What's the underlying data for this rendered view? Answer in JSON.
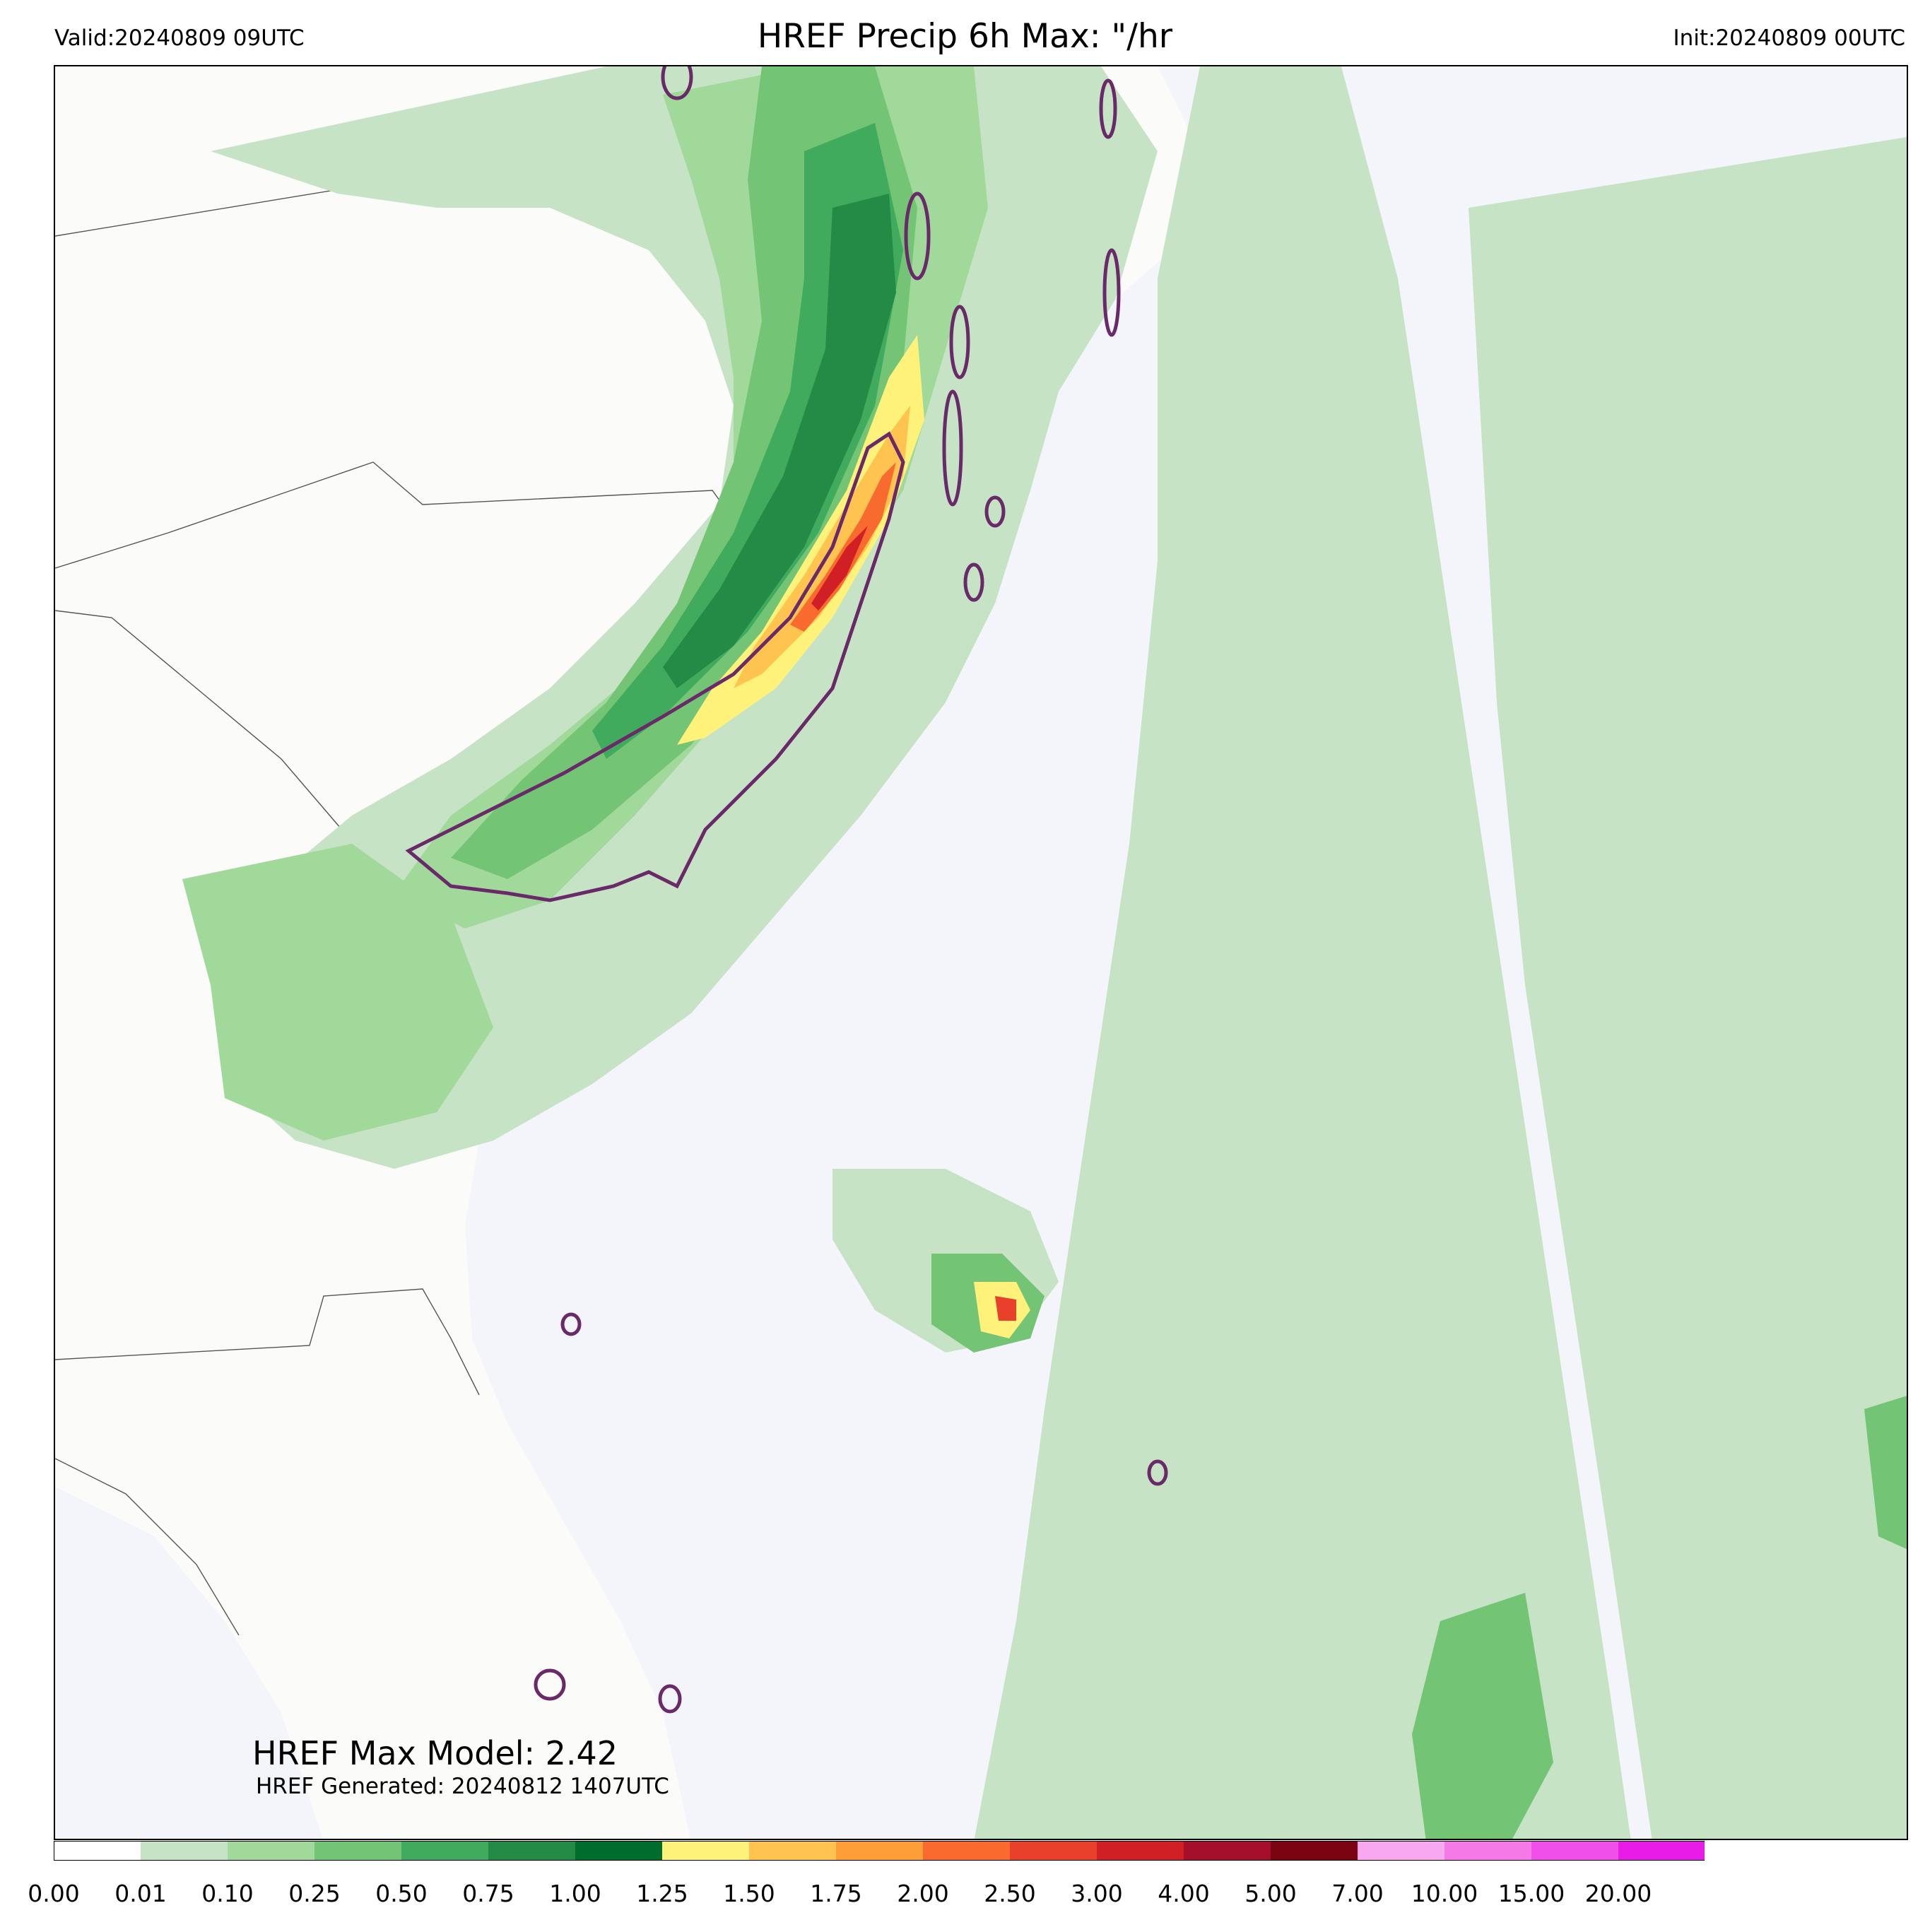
{
  "header": {
    "valid": "Valid:20240809 09UTC",
    "title": "HREF Precip 6h Max: \"/hr",
    "init": "Init:20240809 00UTC"
  },
  "annotations": {
    "max_model": "HREF Max Model: 2.42",
    "generated": "HREF Generated: 20240812 1407UTC"
  },
  "colorbar": {
    "ticks": [
      "0.00",
      "0.01",
      "0.10",
      "0.25",
      "0.50",
      "0.75",
      "1.00",
      "1.25",
      "1.50",
      "1.75",
      "2.00",
      "2.50",
      "3.00",
      "4.00",
      "5.00",
      "7.00",
      "10.00",
      "15.00",
      "20.00"
    ],
    "colors": [
      "#ffffff",
      "#c7e3c5",
      "#a1d99b",
      "#74c476",
      "#41ab5d",
      "#238b45",
      "#006d2c",
      "#fff27a",
      "#fec44f",
      "#fe9e38",
      "#f86a2e",
      "#e8402a",
      "#d11f26",
      "#a50f2c",
      "#7a0410",
      "#f7a8ee",
      "#f57ae8",
      "#f050e8",
      "#e81ce8",
      "#9a12c8"
    ],
    "extend_color": "#8e0ec0"
  },
  "map_colors": {
    "ocean": "#f3f5fb",
    "land": "#fbfbf9",
    "border": "#555555",
    "contour": "#6a2a6a"
  }
}
